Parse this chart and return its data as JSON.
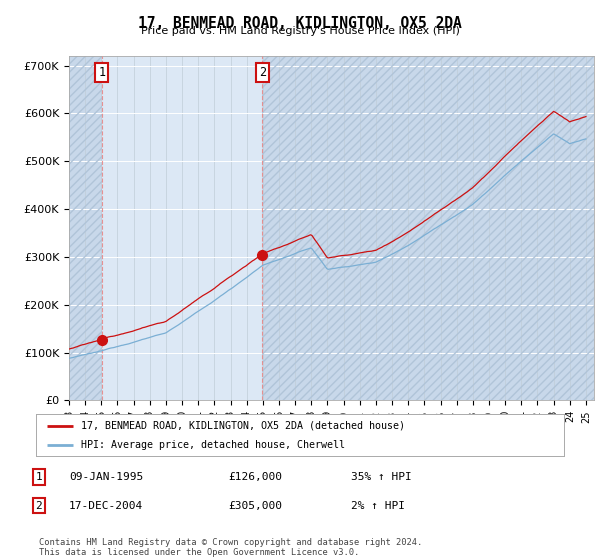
{
  "title": "17, BENMEAD ROAD, KIDLINGTON, OX5 2DA",
  "subtitle": "Price paid vs. HM Land Registry's House Price Index (HPI)",
  "ylim": [
    0,
    720000
  ],
  "yticks": [
    0,
    100000,
    200000,
    300000,
    400000,
    500000,
    600000,
    700000
  ],
  "ytick_labels": [
    "£0",
    "£100K",
    "£200K",
    "£300K",
    "£400K",
    "£500K",
    "£600K",
    "£700K"
  ],
  "sale1_x": 1995.03,
  "sale1_y": 126000,
  "sale2_x": 2004.97,
  "sale2_y": 305000,
  "hpi_color": "#7bafd4",
  "price_color": "#cc1111",
  "legend_label1": "17, BENMEAD ROAD, KIDLINGTON, OX5 2DA (detached house)",
  "legend_label2": "HPI: Average price, detached house, Cherwell",
  "footer": "Contains HM Land Registry data © Crown copyright and database right 2024.\nThis data is licensed under the Open Government Licence v3.0.",
  "table_rows": [
    {
      "num": "1",
      "date": "09-JAN-1995",
      "price": "£126,000",
      "hpi": "35% ↑ HPI"
    },
    {
      "num": "2",
      "date": "17-DEC-2004",
      "price": "£305,000",
      "hpi": "2% ↑ HPI"
    }
  ],
  "xmin": 1993.0,
  "xmax": 2025.5,
  "plot_bg_color": "#dce8f5",
  "hatch_bg_color": "#c8d8ea",
  "grid_color": "#c0cdd8",
  "vline_color": "#e88888"
}
